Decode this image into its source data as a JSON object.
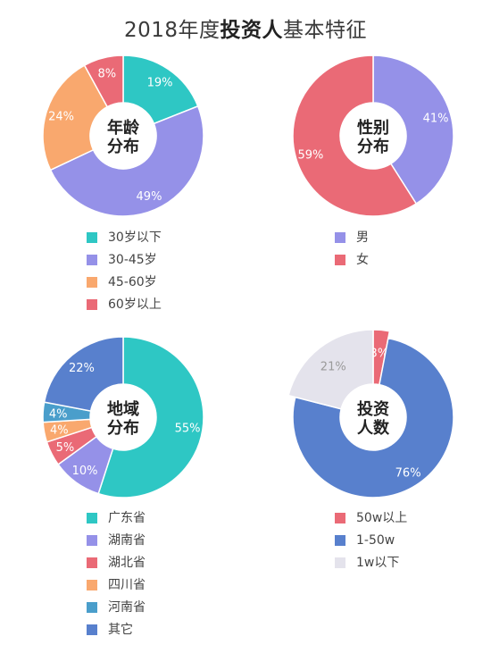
{
  "title": {
    "prefix": "2018年度",
    "bold": "投资人",
    "suffix": "基本特征"
  },
  "chart_data": [
    {
      "type": "pie",
      "center_label": [
        "年龄",
        "分布"
      ],
      "slices": [
        {
          "label": "30岁以下",
          "value": 19,
          "text": "19%",
          "color": "#2ec7c4"
        },
        {
          "label": "30-45岁",
          "value": 49,
          "text": "49%",
          "color": "#9591e8"
        },
        {
          "label": "45-60岁",
          "value": 24,
          "text": "24%",
          "color": "#f9a86e"
        },
        {
          "label": "60岁以上",
          "value": 8,
          "text": "8%",
          "color": "#ea6a76"
        }
      ]
    },
    {
      "type": "pie",
      "center_label": [
        "性别",
        "分布"
      ],
      "slices": [
        {
          "label": "男",
          "value": 41,
          "text": "41%",
          "color": "#9591e8"
        },
        {
          "label": "女",
          "value": 59,
          "text": "59%",
          "color": "#ea6a76"
        }
      ]
    },
    {
      "type": "pie",
      "center_label": [
        "地域",
        "分布"
      ],
      "slices": [
        {
          "label": "广东省",
          "value": 55,
          "text": "55%",
          "color": "#2ec7c4"
        },
        {
          "label": "湖南省",
          "value": 10,
          "text": "10%",
          "color": "#9591e8"
        },
        {
          "label": "湖北省",
          "value": 5,
          "text": "5%",
          "color": "#ea6a76"
        },
        {
          "label": "四川省",
          "value": 4,
          "text": "4%",
          "color": "#f9a86e"
        },
        {
          "label": "河南省",
          "value": 4,
          "text": "4%",
          "color": "#4a9ecb"
        },
        {
          "label": "其它",
          "value": 22,
          "text": "22%",
          "color": "#5880cd"
        }
      ]
    },
    {
      "type": "pie",
      "center_label": [
        "投资",
        "人数"
      ],
      "slices": [
        {
          "label": "50w以上",
          "value": 3,
          "text": "3%",
          "color": "#ea6a76"
        },
        {
          "label": "1-50w",
          "value": 76,
          "text": "76%",
          "color": "#5880cd"
        },
        {
          "label": "1w以下",
          "value": 21,
          "text": "21%",
          "color": "#e4e3ec"
        }
      ]
    }
  ]
}
